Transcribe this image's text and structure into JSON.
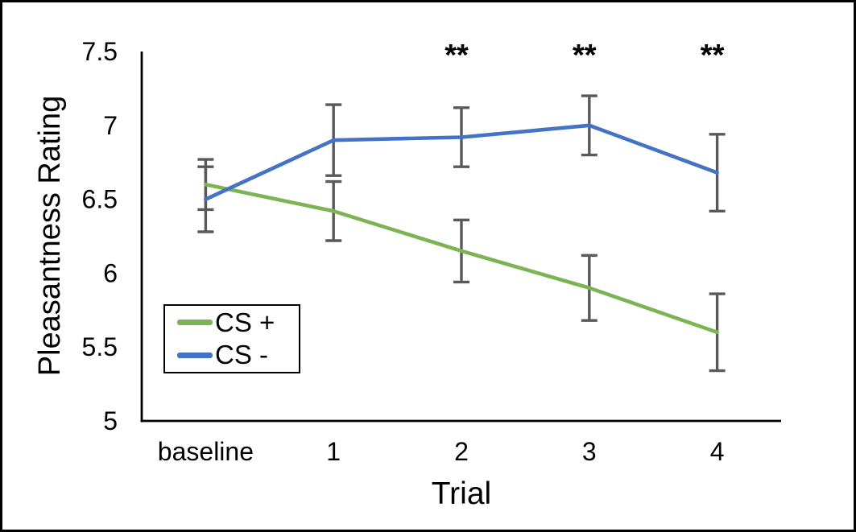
{
  "figure": {
    "background": "#ffffff",
    "border_color": "#000000"
  },
  "chart_data": {
    "type": "line",
    "title": "",
    "xlabel": "Trial",
    "ylabel": "Pleasantness Rating",
    "categories": [
      "baseline",
      "1",
      "2",
      "3",
      "4"
    ],
    "series": [
      {
        "name": "CS +",
        "color": "#7CB454",
        "values": [
          6.6,
          6.42,
          6.15,
          5.9,
          5.6
        ],
        "error_bars": [
          0.17,
          0.2,
          0.21,
          0.22,
          0.26
        ]
      },
      {
        "name": "CS -",
        "color": "#4472C4",
        "values": [
          6.5,
          6.9,
          6.92,
          7.0,
          6.68
        ],
        "error_bars": [
          0.22,
          0.24,
          0.2,
          0.2,
          0.26
        ]
      }
    ],
    "ylim": [
      5,
      7.5
    ],
    "yticks": [
      {
        "value": 7.5,
        "label": "7.5"
      },
      {
        "value": 7,
        "label": "7"
      },
      {
        "value": 6.5,
        "label": "6.5"
      },
      {
        "value": 6,
        "label": "6"
      },
      {
        "value": 5.5,
        "label": "5.5"
      },
      {
        "value": 5,
        "label": "5"
      }
    ],
    "grid": false,
    "legend_position": "inside-lower-left",
    "error_bar_color": "#595959",
    "axis_color": "#000000",
    "annotations": [
      {
        "text": "**",
        "category_index": 2
      },
      {
        "text": "**",
        "category_index": 3
      },
      {
        "text": "**",
        "category_index": 4
      }
    ]
  }
}
